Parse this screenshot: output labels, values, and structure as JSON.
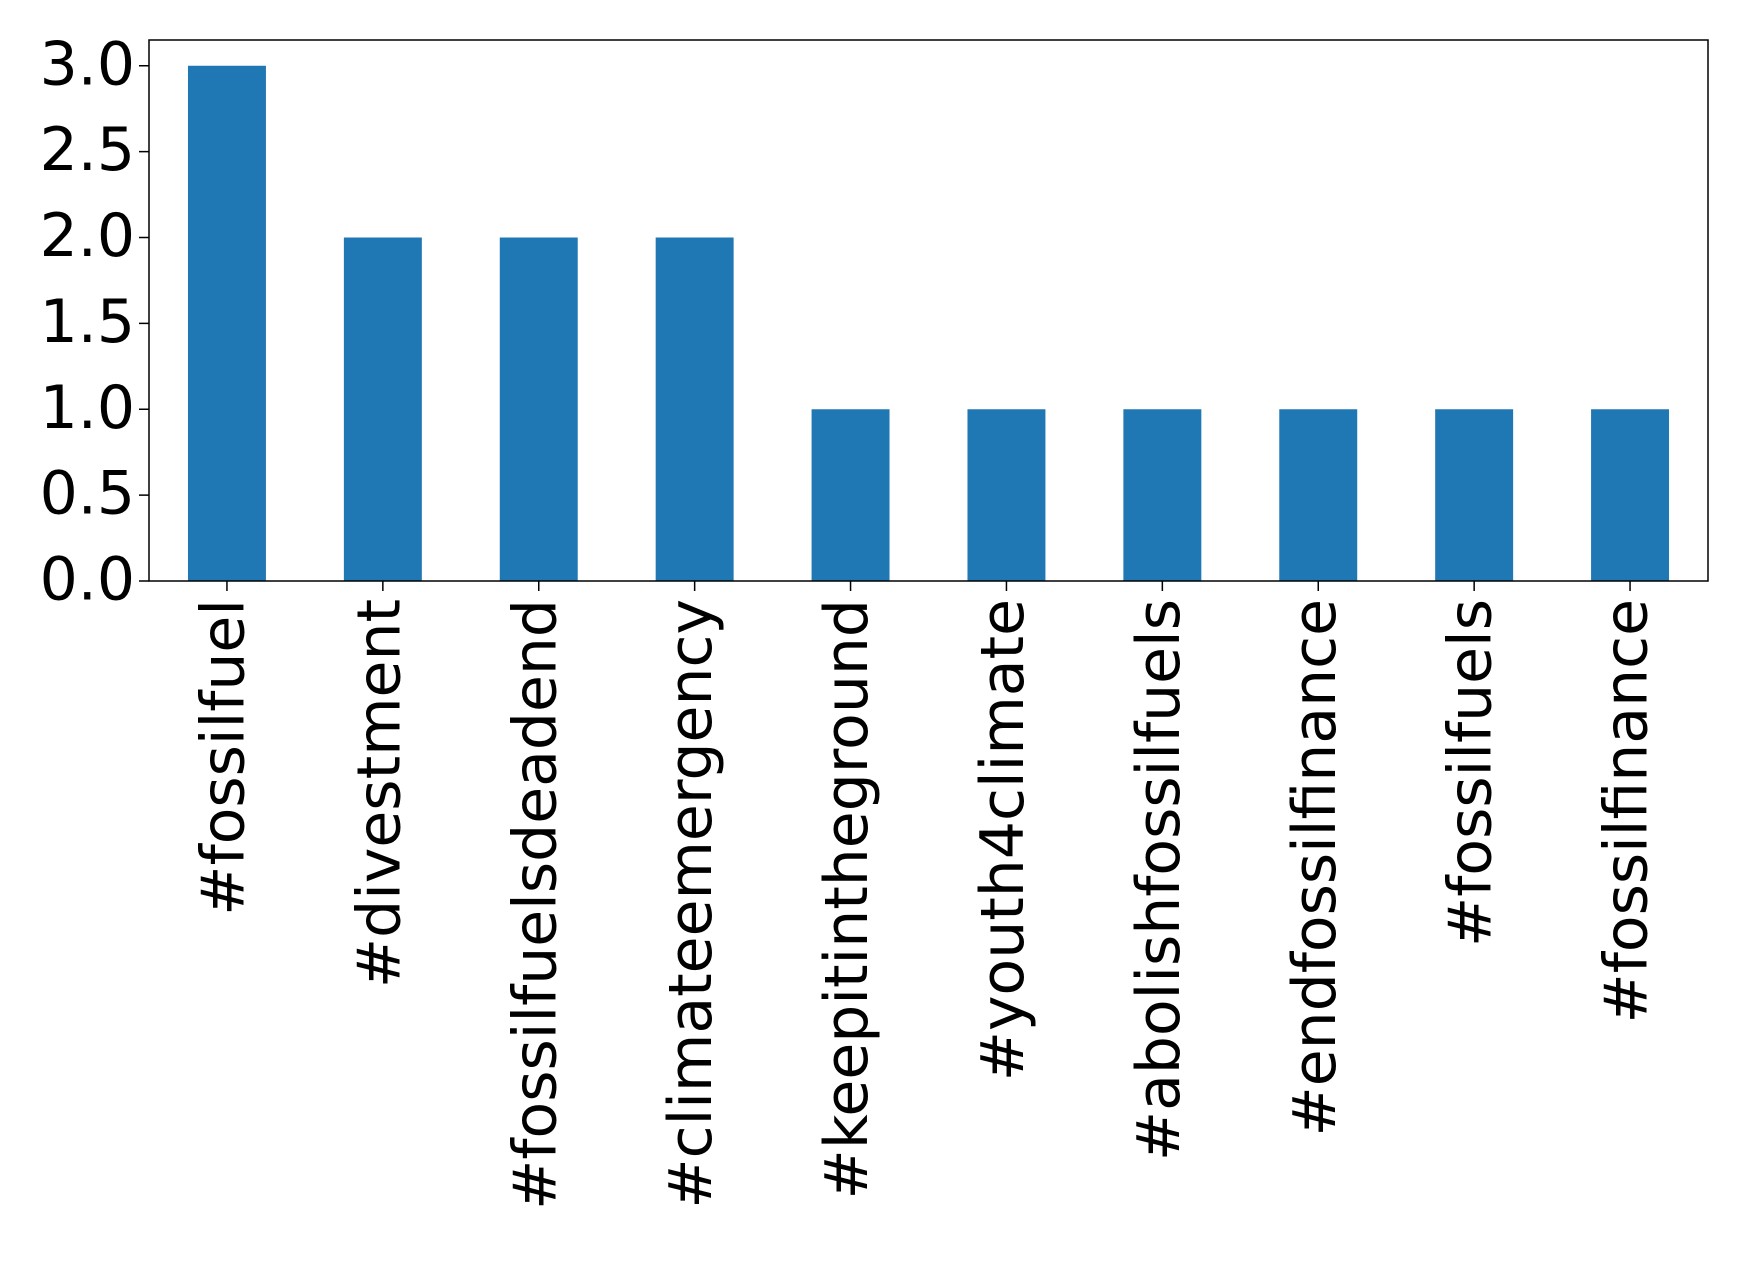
{
  "chart_data": {
    "type": "bar",
    "categories": [
      "#fossilfuel",
      "#divestment",
      "#fossilfuelsdeadend",
      "#climateemergency",
      "#keepitintheground",
      "#youth4climate",
      "#abolishfossilfuels",
      "#endfossilfinance",
      "#fossilfuels",
      "#fossilfinance"
    ],
    "values": [
      3,
      2,
      2,
      2,
      1,
      1,
      1,
      1,
      1,
      1
    ],
    "color": "#1f77b4",
    "ylim": [
      0,
      3.15
    ],
    "yticks": [
      {
        "value": 0,
        "label": "0.0"
      },
      {
        "value": 0.5,
        "label": "0.5"
      },
      {
        "value": 1,
        "label": "1.0"
      },
      {
        "value": 1.5,
        "label": "1.5"
      },
      {
        "value": 2,
        "label": "2.0"
      },
      {
        "value": 2.5,
        "label": "2.5"
      },
      {
        "value": 3,
        "label": "3.0"
      }
    ],
    "grid": false
  }
}
